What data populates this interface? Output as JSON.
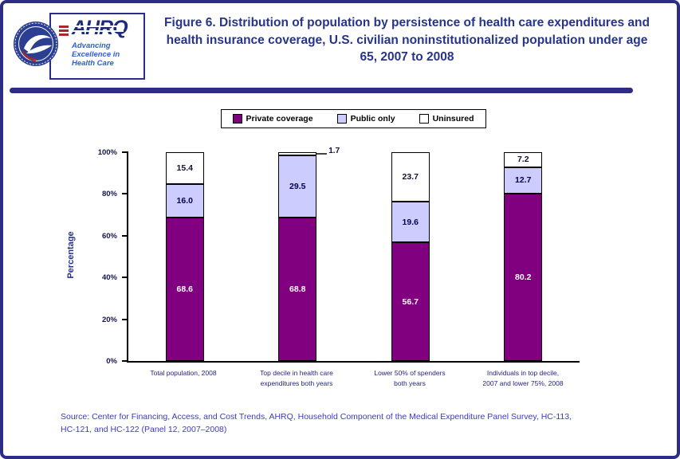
{
  "header": {
    "title": "Figure 6. Distribution of population by persistence of health care expenditures and health insurance coverage, U.S. civilian noninstitutionalized population under age 65, 2007 to 2008"
  },
  "logos": {
    "ahrq_acronym": "AHRQ",
    "ahrq_tagline": [
      "Advancing",
      "Excellence in",
      "Health Care"
    ]
  },
  "footer": {
    "source": "Source: Center for Financing, Access, and Cost Trends, AHRQ, Household Component of the Medical Expenditure Panel Survey, HC-113, HC-121, and HC-122 (Panel 12, 2007–2008)"
  },
  "colors": {
    "border": "#2d2d86",
    "title_text": "#27348b",
    "source_text": "#3a3ac8",
    "private_coverage": "#800080",
    "public_only": "#ccccff",
    "uninsured": "#ffffff"
  },
  "chart_data": {
    "type": "bar",
    "stacked": true,
    "title": "",
    "xlabel": "",
    "ylabel": "Percentage",
    "ylim": [
      0,
      100
    ],
    "grid": false,
    "legend_position": "top",
    "yticks": [
      "0%",
      "20%",
      "40%",
      "60%",
      "80%",
      "100%"
    ],
    "categories": [
      [
        "Total population, 2008"
      ],
      [
        "Top decile in health care",
        "expenditures both years"
      ],
      [
        "Lower 50% of spenders",
        "both years"
      ],
      [
        "Individuals in top decile,",
        "2007 and lower 75%, 2008"
      ]
    ],
    "series": [
      {
        "name": "Private coverage",
        "color": "#800080",
        "label_color": "#ffffff",
        "values": [
          68.6,
          68.8,
          56.7,
          80.2
        ]
      },
      {
        "name": "Public only",
        "color": "#ccccff",
        "label_color": "#00004d",
        "values": [
          16.0,
          29.5,
          19.6,
          12.7
        ]
      },
      {
        "name": "Uninsured",
        "color": "#ffffff",
        "label_color": "#10103a",
        "values": [
          15.4,
          1.7,
          23.7,
          7.2
        ]
      }
    ]
  }
}
